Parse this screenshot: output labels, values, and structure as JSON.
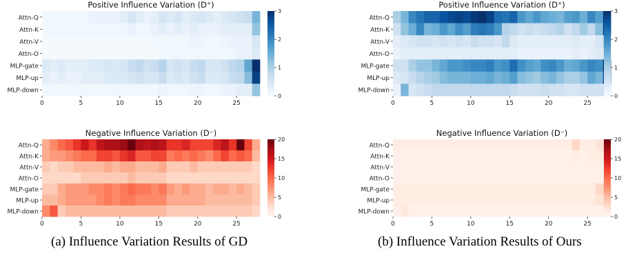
{
  "captions": {
    "a": "(a) Influence Variation Results of GD",
    "b": "(b) Influence Variation Results of Ours"
  },
  "chart_data": [
    {
      "type": "heatmap",
      "panel": "a",
      "title": "Positive Influence Variation",
      "title_symbol": "(D⁺)",
      "colormap": "Blues",
      "categories": [
        "Attn-Q",
        "Attn-K",
        "Attn-V",
        "Attn-O",
        "MLP-gate",
        "MLP-up",
        "MLP-down"
      ],
      "x": [
        0,
        1,
        2,
        3,
        4,
        5,
        6,
        7,
        8,
        9,
        10,
        11,
        12,
        13,
        14,
        15,
        16,
        17,
        18,
        19,
        20,
        21,
        22,
        23,
        24,
        25,
        26,
        27
      ],
      "xticks": [
        0,
        5,
        10,
        15,
        20,
        25
      ],
      "vmin": 0,
      "vmax": 3,
      "colorbar_ticks": [
        0,
        1,
        2,
        3
      ],
      "values": [
        [
          0.1,
          0.1,
          0.1,
          0.1,
          0.1,
          0.1,
          0.2,
          0.2,
          0.2,
          0.2,
          0.3,
          0.5,
          0.3,
          0.2,
          0.3,
          0.5,
          0.4,
          0.5,
          0.3,
          0.4,
          0.5,
          0.4,
          0.3,
          0.4,
          0.5,
          0.6,
          0.7,
          1.4
        ],
        [
          0.1,
          0.1,
          0.1,
          0.1,
          0.1,
          0.1,
          0.1,
          0.1,
          0.1,
          0.1,
          0.1,
          0.2,
          0.1,
          0.1,
          0.2,
          0.3,
          0.2,
          0.3,
          0.2,
          0.3,
          0.2,
          0.2,
          0.2,
          0.3,
          0.3,
          0.3,
          0.3,
          1.2
        ],
        [
          0.05,
          0.05,
          0.05,
          0.05,
          0.05,
          0.05,
          0.05,
          0.05,
          0.05,
          0.05,
          0.05,
          0.05,
          0.05,
          0.05,
          0.1,
          0.1,
          0.1,
          0.1,
          0.1,
          0.15,
          0.15,
          0.1,
          0.1,
          0.15,
          0.2,
          0.2,
          0.2,
          0.5
        ],
        [
          0.05,
          0.05,
          0.05,
          0.05,
          0.05,
          0.05,
          0.05,
          0.05,
          0.05,
          0.05,
          0.05,
          0.05,
          0.05,
          0.05,
          0.05,
          0.1,
          0.1,
          0.1,
          0.1,
          0.1,
          0.1,
          0.1,
          0.1,
          0.1,
          0.1,
          0.2,
          0.2,
          0.4
        ],
        [
          0.4,
          0.3,
          0.4,
          0.3,
          0.3,
          0.3,
          0.4,
          0.4,
          0.5,
          0.4,
          0.5,
          0.7,
          0.8,
          0.6,
          0.7,
          0.9,
          0.5,
          0.6,
          0.5,
          0.7,
          0.8,
          0.5,
          0.5,
          0.6,
          0.8,
          0.9,
          1.6,
          3.0
        ],
        [
          0.3,
          0.2,
          0.3,
          0.2,
          0.2,
          0.3,
          0.3,
          0.3,
          0.4,
          0.4,
          0.4,
          0.5,
          0.6,
          0.5,
          0.5,
          0.7,
          0.4,
          0.5,
          0.4,
          0.6,
          0.7,
          0.4,
          0.4,
          0.5,
          0.7,
          0.8,
          1.3,
          2.8
        ],
        [
          0.1,
          0.1,
          0.1,
          0.1,
          0.1,
          0.1,
          0.1,
          0.1,
          0.1,
          0.1,
          0.1,
          0.1,
          0.1,
          0.1,
          0.1,
          0.15,
          0.1,
          0.1,
          0.1,
          0.15,
          0.15,
          0.1,
          0.1,
          0.2,
          0.2,
          0.3,
          0.3,
          1.2
        ]
      ]
    },
    {
      "type": "heatmap",
      "panel": "a",
      "title": "Negative Influence Variation",
      "title_symbol": "(D⁻)",
      "colormap": "Reds",
      "categories": [
        "Attn-Q",
        "Attn-K",
        "Attn-V",
        "Attn-O",
        "MLP-gate",
        "MLP-up",
        "MLP-down"
      ],
      "x": [
        0,
        1,
        2,
        3,
        4,
        5,
        6,
        7,
        8,
        9,
        10,
        11,
        12,
        13,
        14,
        15,
        16,
        17,
        18,
        19,
        20,
        21,
        22,
        23,
        24,
        25,
        26,
        27
      ],
      "xticks": [
        0,
        5,
        10,
        15,
        20,
        25
      ],
      "vmin": 0,
      "vmax": 20,
      "colorbar_ticks": [
        0,
        5,
        10,
        15,
        20
      ],
      "values": [
        [
          6,
          8,
          10,
          11,
          13,
          15,
          13,
          16,
          17,
          17,
          18,
          20,
          17,
          16,
          17,
          16,
          13,
          13,
          14,
          12,
          12,
          12,
          14,
          16,
          13,
          20,
          12,
          6
        ],
        [
          6,
          7,
          7,
          8,
          9,
          10,
          10,
          12,
          12,
          11,
          13,
          14,
          11,
          11,
          12,
          12,
          9,
          10,
          9,
          10,
          9,
          8,
          10,
          12,
          10,
          11,
          10,
          5
        ],
        [
          4,
          3,
          4,
          4,
          5,
          5,
          5,
          5,
          6,
          5,
          6,
          6,
          5,
          5,
          5,
          6,
          4,
          4,
          4,
          5,
          4,
          4,
          4,
          4,
          4,
          4,
          4,
          3
        ],
        [
          3,
          3,
          3,
          3,
          3,
          4,
          4,
          4,
          4,
          4,
          4,
          5,
          4,
          4,
          4,
          4,
          3,
          3,
          3,
          3,
          3,
          3,
          3,
          3,
          3,
          3,
          3,
          3
        ],
        [
          4,
          4,
          6,
          7,
          7,
          7,
          8,
          8,
          9,
          8,
          9,
          10,
          9,
          9,
          8,
          9,
          7,
          6,
          7,
          6,
          6,
          5,
          6,
          6,
          5,
          6,
          5,
          4
        ],
        [
          5,
          5,
          6,
          7,
          7,
          7,
          7,
          8,
          9,
          8,
          9,
          9,
          8,
          8,
          8,
          8,
          6,
          6,
          6,
          6,
          6,
          5,
          5,
          5,
          5,
          5,
          5,
          4
        ],
        [
          8,
          11,
          4,
          5,
          5,
          5,
          5,
          5,
          5,
          5,
          5,
          5,
          5,
          5,
          5,
          5,
          4,
          4,
          4,
          4,
          4,
          4,
          4,
          4,
          4,
          4,
          4,
          3
        ]
      ]
    },
    {
      "type": "heatmap",
      "panel": "b",
      "title": "Positive Influence Variation",
      "title_symbol": "(D⁺)",
      "colormap": "Blues",
      "categories": [
        "Attn-Q",
        "Attn-K",
        "Attn-V",
        "Attn-O",
        "MLP-gate",
        "MLP-up",
        "MLP-down"
      ],
      "x": [
        0,
        1,
        2,
        3,
        4,
        5,
        6,
        7,
        8,
        9,
        10,
        11,
        12,
        13,
        14,
        15,
        16,
        17,
        18,
        19,
        20,
        21,
        22,
        23,
        24,
        25,
        26,
        27
      ],
      "xticks": [
        0,
        5,
        10,
        15,
        20,
        25
      ],
      "vmin": 0,
      "vmax": 3,
      "colorbar_ticks": [
        0,
        1,
        2,
        3
      ],
      "values": [
        [
          1.0,
          1.4,
          2.0,
          2.2,
          2.4,
          2.4,
          2.6,
          2.7,
          2.8,
          2.7,
          2.9,
          3.0,
          2.8,
          2.3,
          2.2,
          2.4,
          1.8,
          1.6,
          1.8,
          1.6,
          1.5,
          1.4,
          1.7,
          1.8,
          1.5,
          2.0,
          1.7,
          2.9
        ],
        [
          0.6,
          1.2,
          1.5,
          2.0,
          1.4,
          1.5,
          1.8,
          1.6,
          1.9,
          1.7,
          2.1,
          2.2,
          2.1,
          1.8,
          0.9,
          0.8,
          0.6,
          0.7,
          0.6,
          0.7,
          0.8,
          0.9,
          0.6,
          0.8,
          1.1,
          0.8,
          1.3,
          2.8
        ],
        [
          0.3,
          0.4,
          0.5,
          0.6,
          0.6,
          0.5,
          0.6,
          0.5,
          0.6,
          0.5,
          0.7,
          0.6,
          0.6,
          0.5,
          0.8,
          0.4,
          0.3,
          0.3,
          0.3,
          0.3,
          0.3,
          0.3,
          0.3,
          0.4,
          0.3,
          0.3,
          0.5,
          1.0
        ],
        [
          0.2,
          0.3,
          0.3,
          0.3,
          0.3,
          0.3,
          0.3,
          0.3,
          0.3,
          0.3,
          0.3,
          0.3,
          0.3,
          0.3,
          0.3,
          0.3,
          0.2,
          0.2,
          0.2,
          0.2,
          0.2,
          0.2,
          0.2,
          0.3,
          0.2,
          0.3,
          0.4,
          0.6
        ],
        [
          0.6,
          0.6,
          1.0,
          1.2,
          1.2,
          1.4,
          1.6,
          1.8,
          1.8,
          1.9,
          2.0,
          2.0,
          2.1,
          1.8,
          1.9,
          2.3,
          1.9,
          1.7,
          1.6,
          1.9,
          2.0,
          1.8,
          1.5,
          1.6,
          1.8,
          2.0,
          1.9,
          3.0
        ],
        [
          0.4,
          0.5,
          0.7,
          0.9,
          1.0,
          1.1,
          1.3,
          1.4,
          1.4,
          1.4,
          1.5,
          1.5,
          1.6,
          1.4,
          1.5,
          1.7,
          1.3,
          1.2,
          1.1,
          1.3,
          1.4,
          1.2,
          1.0,
          1.0,
          1.2,
          1.6,
          1.4,
          2.7
        ],
        [
          0.2,
          1.4,
          0.5,
          0.6,
          0.7,
          0.8,
          0.8,
          0.8,
          0.8,
          0.8,
          0.8,
          0.8,
          0.8,
          0.8,
          0.8,
          0.7,
          0.6,
          0.6,
          0.6,
          0.7,
          0.6,
          0.6,
          0.5,
          0.5,
          0.6,
          0.6,
          0.6,
          0.7
        ]
      ]
    },
    {
      "type": "heatmap",
      "panel": "b",
      "title": "Negative Influence Variation",
      "title_symbol": "(D⁻)",
      "colormap": "Reds",
      "categories": [
        "Attn-Q",
        "Attn-K",
        "Attn-V",
        "Attn-O",
        "MLP-gate",
        "MLP-up",
        "MLP-down"
      ],
      "x": [
        0,
        1,
        2,
        3,
        4,
        5,
        6,
        7,
        8,
        9,
        10,
        11,
        12,
        13,
        14,
        15,
        16,
        17,
        18,
        19,
        20,
        21,
        22,
        23,
        24,
        25,
        26,
        27
      ],
      "xticks": [
        0,
        5,
        10,
        15,
        20,
        25
      ],
      "vmin": 0,
      "vmax": 20,
      "colorbar_ticks": [
        0,
        5,
        10,
        15,
        20
      ],
      "values": [
        [
          1,
          1,
          1,
          1,
          1,
          1,
          1,
          1,
          1,
          1,
          1,
          1,
          1,
          1,
          1,
          1,
          1,
          1,
          1,
          1,
          1,
          1,
          1,
          3,
          1,
          1,
          2,
          3
        ],
        [
          0.5,
          0.5,
          0.5,
          0.5,
          0.5,
          0.5,
          0.5,
          0.5,
          0.5,
          0.5,
          0.5,
          0.5,
          0.5,
          0.5,
          0.5,
          0.5,
          0.5,
          0.5,
          0.5,
          0.5,
          0.5,
          0.5,
          0.5,
          1,
          0.5,
          1,
          1,
          2
        ],
        [
          0.5,
          0.5,
          0.5,
          0.5,
          0.5,
          0.5,
          0.5,
          0.5,
          0.5,
          0.5,
          0.5,
          0.5,
          0.5,
          0.5,
          0.5,
          0.5,
          0.5,
          0.5,
          0.5,
          0.5,
          0.5,
          0.5,
          0.5,
          0.5,
          0.5,
          0.5,
          0.5,
          1
        ],
        [
          0.5,
          0.5,
          0.5,
          0.5,
          0.5,
          0.5,
          0.5,
          0.5,
          0.5,
          0.5,
          0.5,
          0.5,
          0.5,
          0.5,
          0.5,
          0.5,
          0.5,
          0.5,
          0.5,
          0.5,
          0.5,
          0.5,
          0.5,
          0.5,
          0.5,
          0.5,
          0.5,
          1
        ],
        [
          1,
          1,
          1,
          1,
          1,
          1,
          1,
          1,
          1,
          1,
          1,
          1,
          1,
          1,
          1,
          1,
          1,
          1,
          1,
          1,
          1,
          1,
          1,
          1,
          1,
          1,
          3,
          4
        ],
        [
          1,
          1,
          1,
          1,
          1,
          1,
          1,
          1,
          1,
          1,
          1,
          1,
          1,
          1,
          1,
          1,
          1,
          1,
          1,
          1,
          1,
          1,
          1,
          1,
          1,
          1,
          2,
          3
        ],
        [
          0.5,
          1.5,
          0.5,
          0.5,
          0.5,
          0.5,
          0.5,
          0.5,
          0.5,
          0.5,
          0.5,
          0.5,
          0.5,
          0.5,
          0.5,
          0.5,
          0.5,
          0.5,
          0.5,
          0.5,
          0.5,
          0.5,
          0.5,
          0.5,
          0.5,
          0.5,
          0.5,
          0.5
        ]
      ]
    }
  ]
}
